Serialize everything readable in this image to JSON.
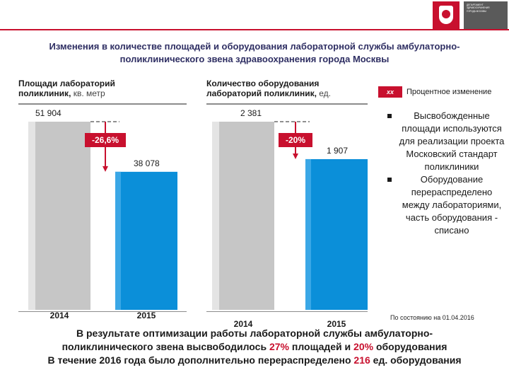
{
  "header": {
    "logo": "moscow-coat-of-arms-icon",
    "department_lines": [
      "ДЕПАРТАМЕНТ",
      "ЗДРАВООХРАНЕНИЯ",
      "ГОРОДА МОСКВЫ"
    ]
  },
  "title": {
    "line1": "Изменения в количестве площадей и оборудования лабораторной службы амбулаторно-",
    "line2": "поликлинического звена здравоохранения города Москвы"
  },
  "legend": {
    "swatch_text": "хх",
    "label": "Процентное изменение"
  },
  "colors": {
    "accent_red": "#c8102e",
    "bar_blue": "#0b8fd9",
    "bar_gray": "#c6c6c6",
    "title_navy": "#2f2f63"
  },
  "chart_data": [
    {
      "type": "bar",
      "title_bold": "Площади лабораторий поликлиник,",
      "title_line1": "Площади лабораторий",
      "title_line2_bold": "поликлиник,",
      "title_unit": " кв. метр",
      "categories": [
        "2014",
        "2015"
      ],
      "values": [
        51904,
        38078
      ],
      "value_labels": [
        "51 904",
        "38 078"
      ],
      "change_label": "-26,6%",
      "ylim": [
        0,
        51904
      ],
      "grid": false
    },
    {
      "type": "bar",
      "title_line1": "Количество  оборудования",
      "title_line2_bold": "лабораторий поликлиник,",
      "title_unit": "  ед.",
      "categories": [
        "2014",
        "2015"
      ],
      "values": [
        2381,
        1907
      ],
      "value_labels": [
        "2 381",
        "1 907"
      ],
      "change_label": "-20%",
      "ylim": [
        0,
        2381
      ],
      "grid": false
    }
  ],
  "bullets": [
    "Высвобожденные площади используются для реализации проекта Московский стандарт поликлиники",
    "Оборудование перераспределено между лабораториями, часть оборудования - списано"
  ],
  "status_date": "По состоянию на 01.04.2016",
  "conclusion": {
    "line1": "В результате оптимизации работы лабораторной службы амбулаторно-",
    "line2_a": "поликлинического звена высвободилось ",
    "line2_pct1": "27%",
    "line2_b": " площадей и ",
    "line2_pct2": "20%",
    "line2_c": " оборудования",
    "line3_a": "В течение 2016 года было дополнительно перераспределено ",
    "line3_num": "216",
    "line3_b": " ед. оборудования"
  }
}
